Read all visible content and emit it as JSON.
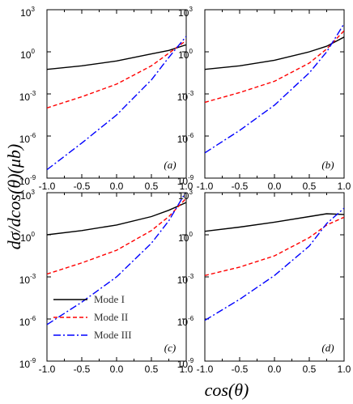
{
  "chart_data": {
    "type": "line",
    "xlabel": "cos(θ)",
    "ylabel": "dσ/dcos(θ)(μb)",
    "xlim": [
      -1.0,
      1.0
    ],
    "ylim_log10": [
      -9,
      3
    ],
    "yscale": "log",
    "x_ticks": [
      "-1.0",
      "-0.5",
      "0.0",
      "0.5",
      "1.0"
    ],
    "y_ticks": [
      {
        "base": "10",
        "exp": "-9"
      },
      {
        "base": "10",
        "exp": "-6"
      },
      {
        "base": "10",
        "exp": "-3"
      },
      {
        "base": "10",
        "exp": "0"
      },
      {
        "base": "10",
        "exp": "3"
      }
    ],
    "legend": {
      "placement": "lower-left of panel (c)",
      "entries": [
        {
          "label": "Mode I",
          "color": "#000000",
          "dash": "solid"
        },
        {
          "label": "Mode II",
          "color": "#ff0000",
          "dash": "dashed"
        },
        {
          "label": "Mode III",
          "color": "#0000ff",
          "dash": "dash-dot"
        }
      ]
    },
    "x": [
      -1.0,
      -0.5,
      0.0,
      0.5,
      0.75,
      1.0
    ],
    "panels": [
      {
        "label": "(a)",
        "series": [
          {
            "name": "Mode I",
            "log10_y": [
              -1.25,
              -1.0,
              -0.65,
              -0.15,
              0.1,
              0.5
            ]
          },
          {
            "name": "Mode II",
            "log10_y": [
              -4.0,
              -3.2,
              -2.3,
              -1.0,
              -0.1,
              0.8
            ]
          },
          {
            "name": "Mode III",
            "log10_y": [
              -8.4,
              -6.5,
              -4.5,
              -2.0,
              -0.4,
              1.1
            ]
          }
        ]
      },
      {
        "label": "(b)",
        "series": [
          {
            "name": "Mode I",
            "log10_y": [
              -1.25,
              -1.0,
              -0.6,
              0.0,
              0.4,
              1.05
            ]
          },
          {
            "name": "Mode II",
            "log10_y": [
              -3.6,
              -2.9,
              -2.1,
              -0.8,
              0.2,
              1.5
            ]
          },
          {
            "name": "Mode III",
            "log10_y": [
              -7.2,
              -5.6,
              -3.8,
              -1.5,
              0.0,
              2.0
            ]
          }
        ]
      },
      {
        "label": "(c)",
        "series": [
          {
            "name": "Mode I",
            "log10_y": [
              0.0,
              0.3,
              0.7,
              1.3,
              1.75,
              2.3
            ]
          },
          {
            "name": "Mode II",
            "log10_y": [
              -2.8,
              -2.0,
              -1.1,
              0.3,
              1.3,
              2.6
            ]
          },
          {
            "name": "Mode III",
            "log10_y": [
              -6.4,
              -4.8,
              -3.0,
              -0.6,
              1.0,
              3.1
            ]
          }
        ]
      },
      {
        "label": "(d)",
        "series": [
          {
            "name": "Mode I",
            "log10_y": [
              0.25,
              0.55,
              0.9,
              1.3,
              1.5,
              1.45
            ]
          },
          {
            "name": "Mode II",
            "log10_y": [
              -2.9,
              -2.3,
              -1.5,
              -0.2,
              0.7,
              1.25
            ]
          },
          {
            "name": "Mode III",
            "log10_y": [
              -6.1,
              -4.6,
              -2.9,
              -0.8,
              0.8,
              1.9
            ]
          }
        ]
      }
    ]
  }
}
